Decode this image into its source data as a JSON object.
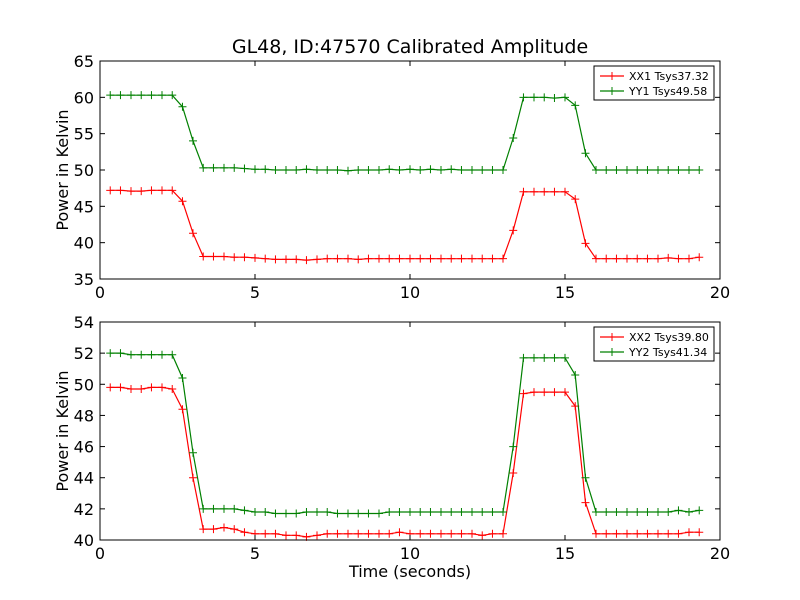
{
  "chart_data": [
    {
      "type": "line",
      "title": "GL48, ID:47570 Calibrated Amplitude",
      "xlabel": "",
      "ylabel": "Power in Kelvin",
      "xlim": [
        0,
        20
      ],
      "ylim": [
        35,
        65
      ],
      "xticks": [
        "0",
        "5",
        "10",
        "15",
        "20"
      ],
      "yticks": [
        "35",
        "40",
        "45",
        "50",
        "55",
        "60",
        "65"
      ],
      "legend_position": "top-right",
      "x": [
        0.33,
        0.66,
        1.0,
        1.33,
        1.66,
        2.0,
        2.33,
        2.66,
        3.0,
        3.33,
        3.66,
        4.0,
        4.33,
        4.66,
        5.0,
        5.33,
        5.66,
        6.0,
        6.33,
        6.66,
        7.0,
        7.33,
        7.66,
        8.0,
        8.33,
        8.66,
        9.0,
        9.33,
        9.66,
        10.0,
        10.33,
        10.66,
        11.0,
        11.33,
        11.66,
        12.0,
        12.33,
        12.66,
        13.0,
        13.33,
        13.66,
        14.0,
        14.33,
        14.66,
        15.0,
        15.33,
        15.66,
        16.0,
        16.33,
        16.66,
        17.0,
        17.33,
        17.66,
        18.0,
        18.33,
        18.66,
        19.0,
        19.33
      ],
      "series": [
        {
          "name": "XX1 Tsys37.32",
          "color": "#ff0000",
          "values": [
            47.2,
            47.2,
            47.1,
            47.1,
            47.2,
            47.2,
            47.2,
            45.7,
            41.3,
            38.1,
            38.1,
            38.1,
            38.0,
            38.0,
            37.9,
            37.8,
            37.7,
            37.7,
            37.7,
            37.6,
            37.7,
            37.8,
            37.8,
            37.8,
            37.7,
            37.8,
            37.8,
            37.8,
            37.8,
            37.8,
            37.8,
            37.8,
            37.8,
            37.8,
            37.8,
            37.8,
            37.8,
            37.8,
            37.8,
            41.7,
            47.0,
            47.0,
            47.0,
            47.0,
            47.0,
            46.0,
            39.9,
            37.8,
            37.8,
            37.8,
            37.8,
            37.8,
            37.8,
            37.8,
            37.9,
            37.8,
            37.8,
            38.0
          ]
        },
        {
          "name": "YY1 Tsys49.58",
          "color": "#008000",
          "values": [
            60.3,
            60.3,
            60.3,
            60.3,
            60.3,
            60.3,
            60.3,
            58.7,
            54.0,
            50.3,
            50.3,
            50.3,
            50.3,
            50.2,
            50.1,
            50.1,
            50.0,
            50.0,
            50.0,
            50.1,
            50.0,
            50.0,
            50.0,
            49.9,
            50.0,
            50.0,
            50.0,
            50.1,
            50.0,
            50.1,
            50.0,
            50.1,
            50.0,
            50.1,
            50.0,
            50.0,
            50.0,
            50.0,
            50.0,
            54.4,
            60.0,
            60.0,
            60.0,
            59.9,
            60.0,
            58.9,
            52.3,
            50.0,
            50.0,
            50.0,
            50.0,
            50.0,
            50.0,
            50.0,
            50.0,
            50.0,
            50.0,
            50.0
          ]
        }
      ]
    },
    {
      "type": "line",
      "title": "",
      "xlabel": "Time (seconds)",
      "ylabel": "Power in Kelvin",
      "xlim": [
        0,
        20
      ],
      "ylim": [
        40,
        54
      ],
      "xticks": [
        "0",
        "5",
        "10",
        "15",
        "20"
      ],
      "yticks": [
        "40",
        "42",
        "44",
        "46",
        "48",
        "50",
        "52",
        "54"
      ],
      "legend_position": "top-right",
      "x": [
        0.33,
        0.66,
        1.0,
        1.33,
        1.66,
        2.0,
        2.33,
        2.66,
        3.0,
        3.33,
        3.66,
        4.0,
        4.33,
        4.66,
        5.0,
        5.33,
        5.66,
        6.0,
        6.33,
        6.66,
        7.0,
        7.33,
        7.66,
        8.0,
        8.33,
        8.66,
        9.0,
        9.33,
        9.66,
        10.0,
        10.33,
        10.66,
        11.0,
        11.33,
        11.66,
        12.0,
        12.33,
        12.66,
        13.0,
        13.33,
        13.66,
        14.0,
        14.33,
        14.66,
        15.0,
        15.33,
        15.66,
        16.0,
        16.33,
        16.66,
        17.0,
        17.33,
        17.66,
        18.0,
        18.33,
        18.66,
        19.0,
        19.33
      ],
      "series": [
        {
          "name": "XX2 Tsys39.80",
          "color": "#ff0000",
          "values": [
            49.8,
            49.8,
            49.7,
            49.7,
            49.8,
            49.8,
            49.7,
            48.4,
            44.0,
            40.7,
            40.7,
            40.8,
            40.7,
            40.5,
            40.4,
            40.4,
            40.4,
            40.3,
            40.3,
            40.2,
            40.3,
            40.4,
            40.4,
            40.4,
            40.4,
            40.4,
            40.4,
            40.4,
            40.5,
            40.4,
            40.4,
            40.4,
            40.4,
            40.4,
            40.4,
            40.4,
            40.3,
            40.4,
            40.4,
            44.3,
            49.4,
            49.5,
            49.5,
            49.5,
            49.5,
            48.6,
            42.4,
            40.4,
            40.4,
            40.4,
            40.4,
            40.4,
            40.4,
            40.4,
            40.4,
            40.4,
            40.5,
            40.5
          ]
        },
        {
          "name": "YY2 Tsys41.34",
          "color": "#008000",
          "values": [
            52.0,
            52.0,
            51.9,
            51.9,
            51.9,
            51.9,
            51.9,
            50.4,
            45.6,
            42.0,
            42.0,
            42.0,
            42.0,
            41.9,
            41.8,
            41.8,
            41.7,
            41.7,
            41.7,
            41.8,
            41.8,
            41.8,
            41.7,
            41.7,
            41.7,
            41.7,
            41.7,
            41.8,
            41.8,
            41.8,
            41.8,
            41.8,
            41.8,
            41.8,
            41.8,
            41.8,
            41.8,
            41.8,
            41.8,
            46.0,
            51.7,
            51.7,
            51.7,
            51.7,
            51.7,
            50.6,
            44.0,
            41.8,
            41.8,
            41.8,
            41.8,
            41.8,
            41.8,
            41.8,
            41.8,
            41.9,
            41.8,
            41.9
          ]
        }
      ]
    }
  ]
}
